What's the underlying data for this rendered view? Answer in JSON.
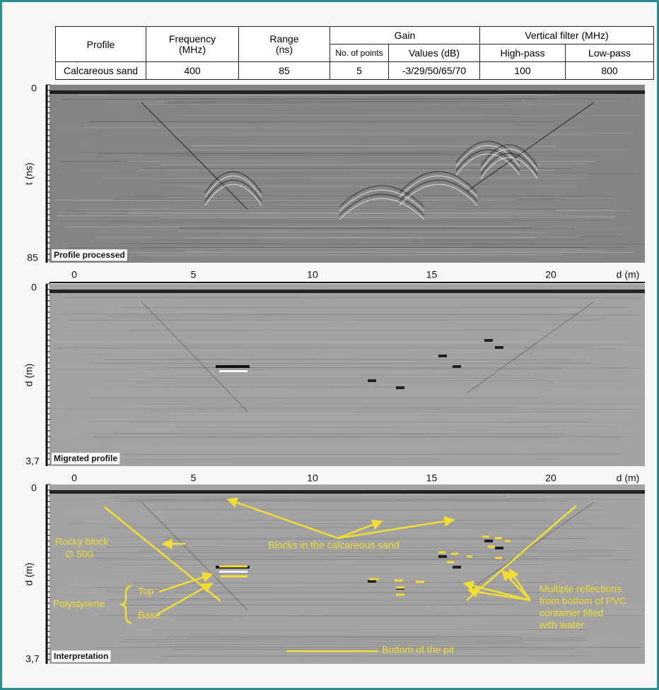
{
  "table": {
    "header": [
      "Profile",
      "Frequency (MHz)",
      "Range (ns)",
      "Gain",
      "Vertical filter (MHz)"
    ],
    "subheader": [
      "No. of points",
      "Values (dB)",
      "High-pass",
      "Low-pass"
    ],
    "row": [
      "Calcareous sand",
      "400",
      "85",
      "5",
      "-3/29/50/65/70",
      "100",
      "800"
    ]
  },
  "panels": [
    {
      "label": "Profile processed",
      "y_axis": "t (ns)",
      "y_top": "0",
      "y_bottom": "85",
      "x_ticks": [
        "0",
        "5",
        "10",
        "15",
        "20"
      ],
      "x_axis": "d (m)"
    },
    {
      "label": "Migrated profile",
      "y_axis": "d (m)",
      "y_top": "0",
      "y_bottom": "3,7",
      "x_ticks": [
        "0",
        "5",
        "10",
        "15",
        "20"
      ],
      "x_axis": "d (m)"
    },
    {
      "label": "Interpretation",
      "y_axis": "d (m)",
      "y_top": "0",
      "y_bottom": "3,7"
    }
  ],
  "annotations": {
    "rocky_block": [
      "Rocky block",
      "∅ 500"
    ],
    "blocks": "Blocks in the calcareous sand",
    "polystyrene": "Polystyrene",
    "top": "Top",
    "base": "Base",
    "reflections": [
      "Multiple reflections",
      "from bottom of PVC",
      "container filled",
      "with water"
    ],
    "bottom": "Bottom of the pit"
  }
}
